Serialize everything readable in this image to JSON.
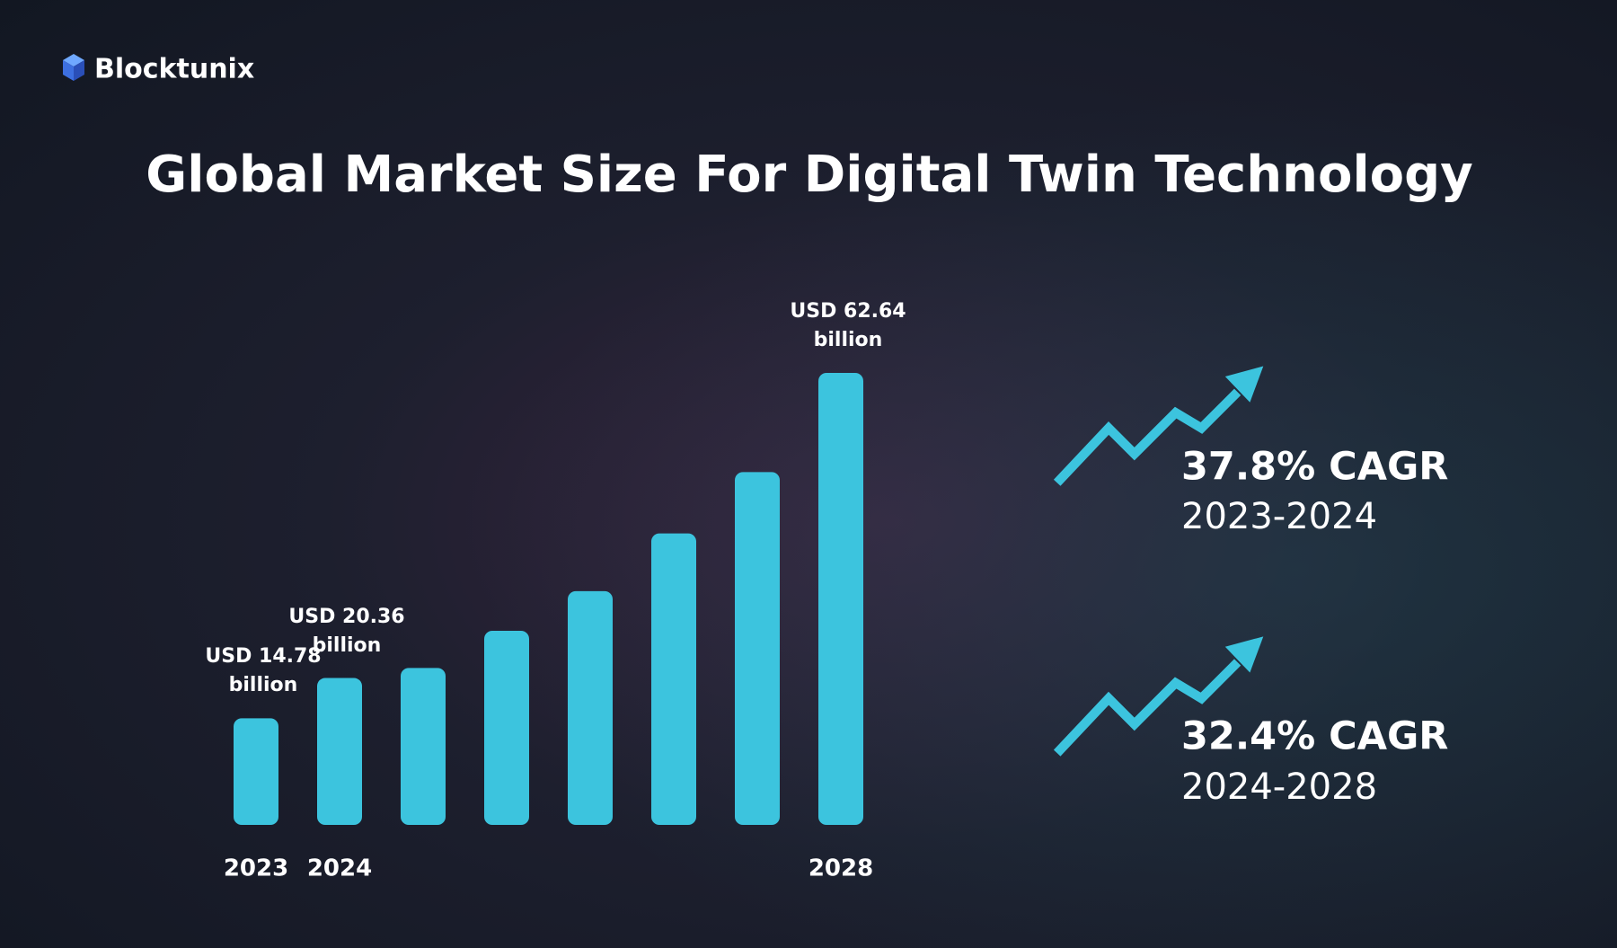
{
  "brand": "Blocktunix",
  "chart_data": {
    "type": "bar",
    "title": "Global Market Size For Digital Twin Technology",
    "categories": [
      "2023",
      "2024",
      null,
      null,
      null,
      null,
      null,
      "2028"
    ],
    "values": [
      14.78,
      20.36,
      21.75,
      26.9,
      32.4,
      40.4,
      48.9,
      62.64
    ],
    "value_labels": [
      "USD 14.78 billion",
      "USD 20.36 billion",
      null,
      null,
      null,
      null,
      null,
      "USD 62.64 billion"
    ],
    "color": "#3cc4de",
    "ylim": [
      0,
      62.64
    ],
    "annotations": [
      {
        "headline": "37.8% CAGR",
        "period": "2023-2024"
      },
      {
        "headline": "32.4% CAGR",
        "period": "2024-2028"
      }
    ]
  }
}
